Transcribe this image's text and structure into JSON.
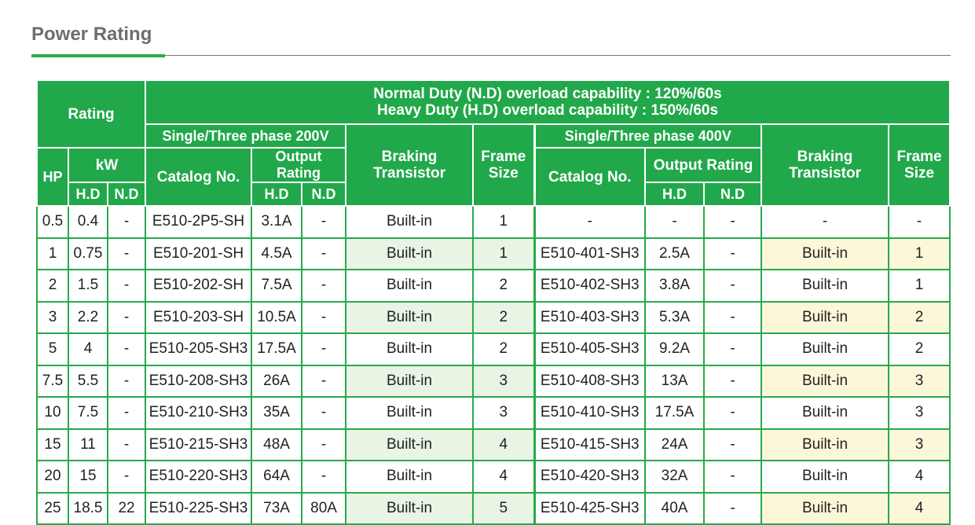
{
  "page_title": "Power Rating",
  "header": {
    "rating": "Rating",
    "overload_nd": "Normal Duty (N.D) overload capability : 120%/60s",
    "overload_hd": "Heavy Duty (H.D) overload capability : 150%/60s",
    "group_200v": "Single/Three phase 200V",
    "group_400v": "Single/Three phase 400V",
    "hp": "HP",
    "kw": "kW",
    "hd": "H.D",
    "nd": "N.D",
    "catalog_no": "Catalog No.",
    "output_rating": "Output Rating",
    "braking_1": "Braking",
    "braking_2": "Transistor",
    "frame_1": "Frame",
    "frame_2": "Size"
  },
  "rows": [
    {
      "hp": "0.5",
      "kw_hd": "0.4",
      "kw_nd": "-",
      "cat200": "E510-2P5-SH",
      "out200_hd": "3.1A",
      "out200_nd": "-",
      "brk200": "Built-in",
      "frame200": "1",
      "cat400": "-",
      "out400_hd": "-",
      "out400_nd": "-",
      "brk400": "-",
      "frame400": "-"
    },
    {
      "hp": "1",
      "kw_hd": "0.75",
      "kw_nd": "-",
      "cat200": "E510-201-SH",
      "out200_hd": "4.5A",
      "out200_nd": "-",
      "brk200": "Built-in",
      "frame200": "1",
      "cat400": "E510-401-SH3",
      "out400_hd": "2.5A",
      "out400_nd": "-",
      "brk400": "Built-in",
      "frame400": "1"
    },
    {
      "hp": "2",
      "kw_hd": "1.5",
      "kw_nd": "-",
      "cat200": "E510-202-SH",
      "out200_hd": "7.5A",
      "out200_nd": "-",
      "brk200": "Built-in",
      "frame200": "2",
      "cat400": "E510-402-SH3",
      "out400_hd": "3.8A",
      "out400_nd": "-",
      "brk400": "Built-in",
      "frame400": "1"
    },
    {
      "hp": "3",
      "kw_hd": "2.2",
      "kw_nd": "-",
      "cat200": "E510-203-SH",
      "out200_hd": "10.5A",
      "out200_nd": "-",
      "brk200": "Built-in",
      "frame200": "2",
      "cat400": "E510-403-SH3",
      "out400_hd": "5.3A",
      "out400_nd": "-",
      "brk400": "Built-in",
      "frame400": "2"
    },
    {
      "hp": "5",
      "kw_hd": "4",
      "kw_nd": "-",
      "cat200": "E510-205-SH3",
      "out200_hd": "17.5A",
      "out200_nd": "-",
      "brk200": "Built-in",
      "frame200": "2",
      "cat400": "E510-405-SH3",
      "out400_hd": "9.2A",
      "out400_nd": "-",
      "brk400": "Built-in",
      "frame400": "2"
    },
    {
      "hp": "7.5",
      "kw_hd": "5.5",
      "kw_nd": "-",
      "cat200": "E510-208-SH3",
      "out200_hd": "26A",
      "out200_nd": "-",
      "brk200": "Built-in",
      "frame200": "3",
      "cat400": "E510-408-SH3",
      "out400_hd": "13A",
      "out400_nd": "-",
      "brk400": "Built-in",
      "frame400": "3"
    },
    {
      "hp": "10",
      "kw_hd": "7.5",
      "kw_nd": "-",
      "cat200": "E510-210-SH3",
      "out200_hd": "35A",
      "out200_nd": "-",
      "brk200": "Built-in",
      "frame200": "3",
      "cat400": "E510-410-SH3",
      "out400_hd": "17.5A",
      "out400_nd": "-",
      "brk400": "Built-in",
      "frame400": "3"
    },
    {
      "hp": "15",
      "kw_hd": "11",
      "kw_nd": "-",
      "cat200": "E510-215-SH3",
      "out200_hd": "48A",
      "out200_nd": "-",
      "brk200": "Built-in",
      "frame200": "4",
      "cat400": "E510-415-SH3",
      "out400_hd": "24A",
      "out400_nd": "-",
      "brk400": "Built-in",
      "frame400": "3"
    },
    {
      "hp": "20",
      "kw_hd": "15",
      "kw_nd": "-",
      "cat200": "E510-220-SH3",
      "out200_hd": "64A",
      "out200_nd": "-",
      "brk200": "Built-in",
      "frame200": "4",
      "cat400": "E510-420-SH3",
      "out400_hd": "32A",
      "out400_nd": "-",
      "brk400": "Built-in",
      "frame400": "4"
    },
    {
      "hp": "25",
      "kw_hd": "18.5",
      "kw_nd": "22",
      "cat200": "E510-225-SH3",
      "out200_hd": "73A",
      "out200_nd": "80A",
      "brk200": "Built-in",
      "frame200": "5",
      "cat400": "E510-425-SH3",
      "out400_hd": "40A",
      "out400_nd": "-",
      "brk400": "Built-in",
      "frame400": "4"
    }
  ]
}
